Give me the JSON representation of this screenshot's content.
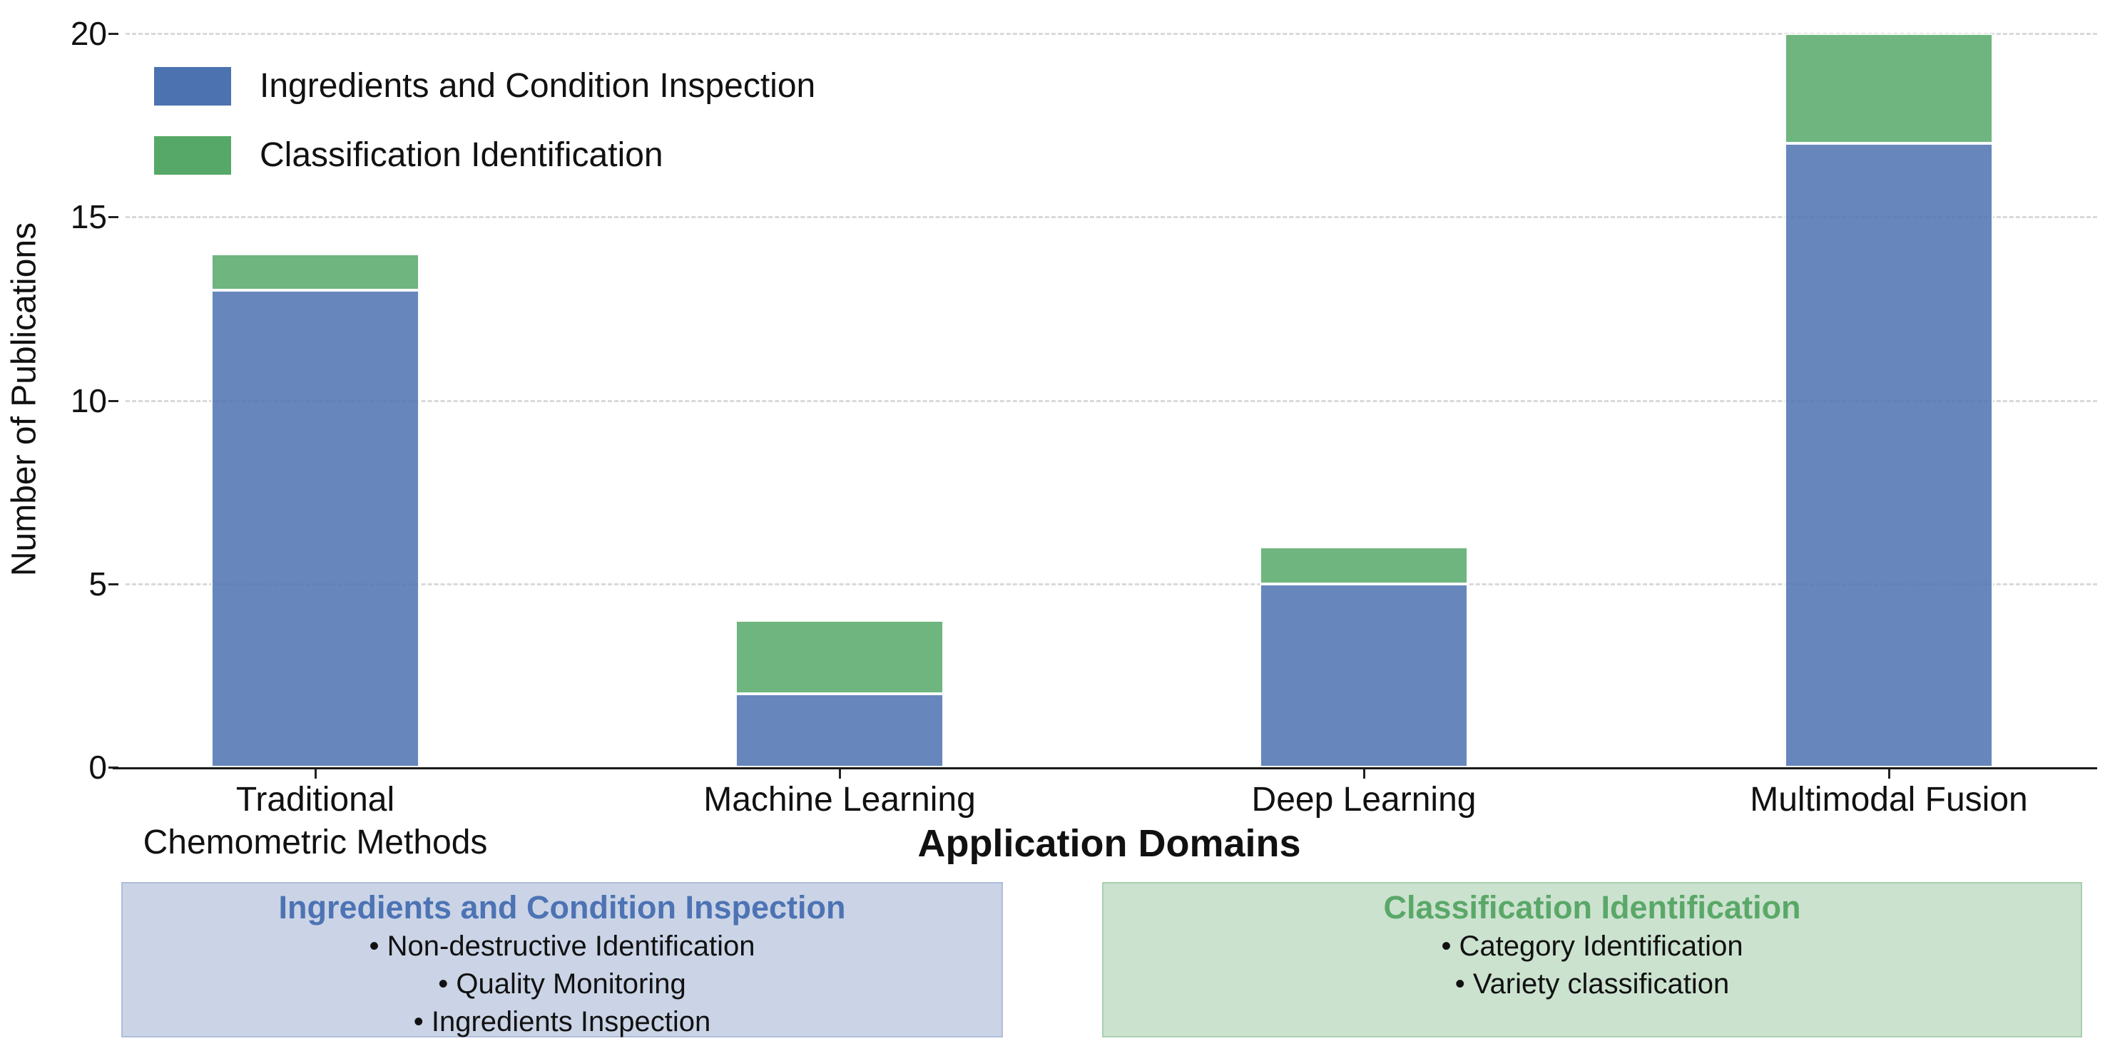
{
  "chart_data": {
    "type": "bar",
    "stacked": true,
    "title": "",
    "xlabel": "Application Domains",
    "ylabel": "Number of Publications",
    "categories": [
      "Traditional\nChemometric Methods",
      "Machine Learning",
      "Deep Learning",
      "Multimodal Fusion"
    ],
    "series": [
      {
        "name": "Ingredients and Condition Inspection",
        "values": [
          13,
          2,
          5,
          17
        ],
        "color": "#4C72B0",
        "bar_fill": "rgba(76,114,176,0.85)"
      },
      {
        "name": "Classification Identification",
        "values": [
          1,
          2,
          1,
          3
        ],
        "color": "#55A868",
        "bar_fill": "rgba(85,168,104,0.85)"
      }
    ],
    "totals": [
      14,
      4,
      6,
      20
    ],
    "ylim": [
      0,
      20
    ],
    "yticks": [
      0,
      5,
      10,
      15,
      20
    ],
    "grid": "horizontal-dashed",
    "legend_position": "upper-left"
  },
  "annotations": [
    {
      "title": "Ingredients and Condition Inspection",
      "bullets": [
        "Non-destructive Identification",
        "Quality Monitoring",
        "Ingredients Inspection"
      ],
      "bg": "#CAD4E6",
      "border": "#AFBDDA",
      "title_color": "#4D73B4"
    },
    {
      "title": "Classification Identification",
      "bullets": [
        "Category Identification",
        "Variety classification"
      ],
      "bg": "#CBE2CF",
      "border": "#A9D1AF",
      "title_color": "#5AA868"
    }
  ],
  "colors": {
    "axis": "#1a1a1a",
    "gridline": "#d9d9d9",
    "bar_edge": "#ffffff"
  }
}
